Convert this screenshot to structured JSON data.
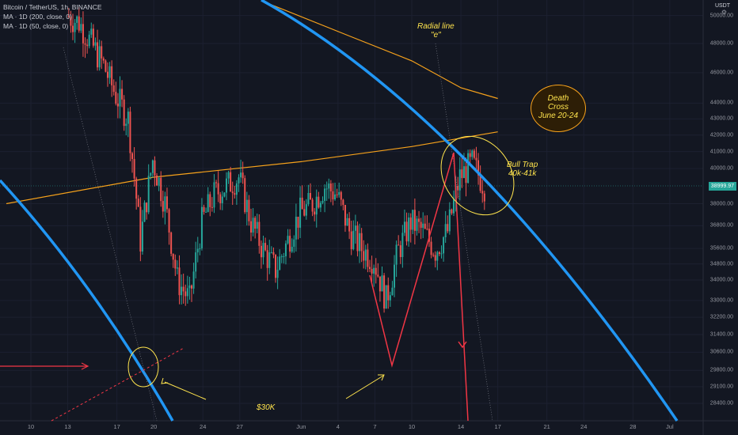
{
  "legend": {
    "title": "Bitcoin / TetherUS, 1h, BINANCE",
    "ma200": "MA · 1D (200, close, 0)",
    "ma50": "MA · 1D (50, close, 0)"
  },
  "axis": {
    "unit": "USDT",
    "current_price_label": "38999.97",
    "price_ticks": [
      {
        "label": "50000.00",
        "v": 50000
      },
      {
        "label": "48000.00",
        "v": 48000
      },
      {
        "label": "46000.00",
        "v": 46000
      },
      {
        "label": "44000.00",
        "v": 44000
      },
      {
        "label": "43000.00",
        "v": 43000
      },
      {
        "label": "42000.00",
        "v": 42000
      },
      {
        "label": "41000.00",
        "v": 41000
      },
      {
        "label": "40000.00",
        "v": 40000
      },
      {
        "label": "38000.00",
        "v": 38000
      },
      {
        "label": "36800.00",
        "v": 36800
      },
      {
        "label": "35600.00",
        "v": 35600
      },
      {
        "label": "34800.00",
        "v": 34800
      },
      {
        "label": "34000.00",
        "v": 34000
      },
      {
        "label": "33000.00",
        "v": 33000
      },
      {
        "label": "32200.00",
        "v": 32200
      },
      {
        "label": "31400.00",
        "v": 31400
      },
      {
        "label": "30600.00",
        "v": 30600
      },
      {
        "label": "29800.00",
        "v": 29800
      },
      {
        "label": "29100.00",
        "v": 29100
      },
      {
        "label": "28400.00",
        "v": 28400
      }
    ],
    "date_ticks": [
      {
        "label": "10",
        "d": 10
      },
      {
        "label": "13",
        "d": 13
      },
      {
        "label": "17",
        "d": 17
      },
      {
        "label": "20",
        "d": 20
      },
      {
        "label": "24",
        "d": 24
      },
      {
        "label": "27",
        "d": 27
      },
      {
        "label": "Jun",
        "d": 32
      },
      {
        "label": "4",
        "d": 35
      },
      {
        "label": "7",
        "d": 38
      },
      {
        "label": "10",
        "d": 41
      },
      {
        "label": "14",
        "d": 45
      },
      {
        "label": "17",
        "d": 48
      },
      {
        "label": "21",
        "d": 52
      },
      {
        "label": "24",
        "d": 55
      },
      {
        "label": "28",
        "d": 59
      },
      {
        "label": "Jul",
        "d": 62
      }
    ]
  },
  "annotations": {
    "radial": "Radial line\n\"e\"",
    "death_cross": "Death\nCross\nJune 20-24",
    "bull_trap": "Bull Trap\n40k-41k",
    "thirty_k": "$30K"
  },
  "colors": {
    "background": "#131722",
    "up": "#26a69a",
    "down": "#ef5350",
    "blue_arc": "#2196f3",
    "ma": "#f7a21b",
    "red_line": "#f23645",
    "yellow_ann": "#ffe44d"
  },
  "chart_data": {
    "type": "line",
    "title": "Bitcoin / TetherUS, 1h, BINANCE",
    "ylabel": "USDT",
    "y_scale": "log",
    "ylim": [
      28000,
      51000
    ],
    "x_range_days": [
      "May 8",
      "Jul 2"
    ],
    "series": [
      {
        "name": "Bitcoin / TetherUS, 1h, BINANCE",
        "x": [
          "May 13",
          "May 14",
          "May 15",
          "May 16",
          "May 17",
          "May 18",
          "May 19",
          "May 20",
          "May 21",
          "May 22",
          "May 23",
          "May 24",
          "May 25",
          "May 26",
          "May 27",
          "May 28",
          "May 29",
          "May 30",
          "May 31",
          "Jun 1",
          "Jun 2",
          "Jun 3",
          "Jun 4",
          "Jun 5",
          "Jun 6",
          "Jun 7",
          "Jun 8",
          "Jun 9",
          "Jun 10",
          "Jun 11",
          "Jun 12",
          "Jun 13",
          "Jun 14",
          "Jun 15",
          "Jun 16"
        ],
        "y": [
          50000,
          49500,
          48000,
          46500,
          44500,
          43000,
          36000,
          40500,
          38000,
          34000,
          33000,
          37000,
          38500,
          39000,
          39500,
          37000,
          35500,
          34500,
          36000,
          37500,
          38000,
          39000,
          38500,
          36500,
          35600,
          35000,
          33000,
          35500,
          37000,
          36500,
          35500,
          36500,
          39500,
          40300,
          39000
        ]
      },
      {
        "name": "MA · 1D (200, close, 0)",
        "x": [
          "May 8",
          "May 20",
          "Jun 1",
          "Jun 10",
          "Jun 17"
        ],
        "y": [
          38000,
          39500,
          40400,
          41300,
          42200
        ]
      },
      {
        "name": "MA · 1D (50, close, 0)",
        "x": [
          "May 29",
          "Jun 5",
          "Jun 10",
          "Jun 14",
          "Jun 17"
        ],
        "y": [
          51000,
          48500,
          46800,
          45000,
          44300
        ]
      }
    ]
  }
}
